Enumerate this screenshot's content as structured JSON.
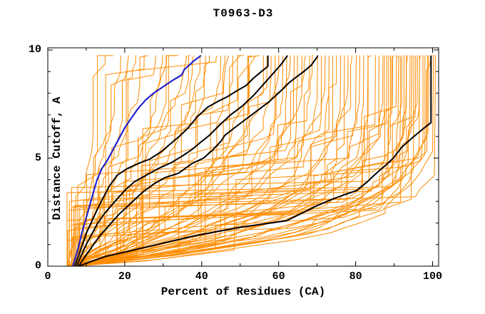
{
  "chart_data": {
    "type": "line",
    "title": "T0963-D3",
    "xlabel": "Percent of Residues (CA)",
    "ylabel": "Distance Cutoff, A",
    "xlim": [
      0,
      101.6
    ],
    "ylim": [
      0,
      10.1
    ],
    "grid": false,
    "legend": "none",
    "x_major_ticks": [
      0,
      20,
      40,
      60,
      80,
      100
    ],
    "x_minor_ticks": [
      10,
      30,
      50,
      70,
      90
    ],
    "y_major_ticks": [
      0,
      5,
      10
    ],
    "y_minor_ticks": [
      1,
      2,
      3,
      4,
      6,
      7,
      8,
      9
    ],
    "curve_top_y": 9.74,
    "colors": {
      "ensemble": "#ff8c00",
      "highlight": "#000000",
      "best": "#2222cc",
      "frame": "#000000",
      "background": "#ffffff"
    },
    "series": [
      {
        "name": "highlight-model-1",
        "color_key": "highlight",
        "width": 2,
        "points": [
          [
            7,
            0
          ],
          [
            8,
            0.5
          ],
          [
            9,
            1.0
          ],
          [
            10.2,
            1.6
          ],
          [
            11.5,
            2.1
          ],
          [
            12.8,
            2.6
          ],
          [
            14.2,
            3.1
          ],
          [
            16,
            3.7
          ],
          [
            18,
            4.2
          ],
          [
            20.5,
            4.5
          ],
          [
            23.5,
            4.75
          ],
          [
            26.5,
            4.95
          ],
          [
            29.5,
            5.3
          ],
          [
            31.5,
            5.6
          ],
          [
            34.4,
            6.04
          ],
          [
            36.5,
            6.4
          ],
          [
            38.8,
            6.9
          ],
          [
            41.6,
            7.36
          ],
          [
            44,
            7.6
          ],
          [
            46.8,
            7.85
          ],
          [
            49,
            8.1
          ],
          [
            51.5,
            8.35
          ],
          [
            53.5,
            8.7
          ],
          [
            55.5,
            9.0
          ],
          [
            57.2,
            9.24
          ],
          [
            57.2,
            9.74
          ]
        ]
      },
      {
        "name": "highlight-model-2",
        "color_key": "highlight",
        "width": 2,
        "points": [
          [
            7.5,
            0
          ],
          [
            8.7,
            0.5
          ],
          [
            10,
            1.0
          ],
          [
            11.5,
            1.5
          ],
          [
            13,
            2.0
          ],
          [
            15,
            2.5
          ],
          [
            17.5,
            3.0
          ],
          [
            20,
            3.5
          ],
          [
            22.5,
            3.9
          ],
          [
            25.5,
            4.2
          ],
          [
            28.5,
            4.5
          ],
          [
            32.1,
            4.79
          ],
          [
            35,
            5.1
          ],
          [
            37.5,
            5.4
          ],
          [
            39.5,
            5.7
          ],
          [
            41.9,
            6.04
          ],
          [
            44.5,
            6.5
          ],
          [
            47.5,
            7.0
          ],
          [
            50.5,
            7.4
          ],
          [
            53.5,
            7.9
          ],
          [
            56.5,
            8.5
          ],
          [
            58.5,
            8.9
          ],
          [
            60.5,
            9.3
          ],
          [
            62.3,
            9.74
          ]
        ]
      },
      {
        "name": "highlight-model-3",
        "color_key": "highlight",
        "width": 2,
        "points": [
          [
            8,
            0
          ],
          [
            9.5,
            0.4
          ],
          [
            11.5,
            0.9
          ],
          [
            13.5,
            1.4
          ],
          [
            16,
            1.9
          ],
          [
            18.5,
            2.4
          ],
          [
            21.5,
            2.9
          ],
          [
            24.5,
            3.4
          ],
          [
            27.5,
            3.8
          ],
          [
            30.5,
            4.1
          ],
          [
            34,
            4.3
          ],
          [
            37.5,
            4.75
          ],
          [
            40.5,
            5.0
          ],
          [
            43,
            5.4
          ],
          [
            45.1,
            5.8
          ],
          [
            46,
            6.05
          ],
          [
            48.5,
            6.4
          ],
          [
            51.5,
            6.8
          ],
          [
            54.5,
            7.2
          ],
          [
            57.5,
            7.6
          ],
          [
            60.5,
            8.1
          ],
          [
            62.8,
            8.5
          ],
          [
            64.6,
            8.75
          ],
          [
            66.5,
            9.0
          ],
          [
            68.5,
            9.3
          ],
          [
            70,
            9.67
          ],
          [
            70.2,
            9.74
          ]
        ]
      },
      {
        "name": "highlight-model-4",
        "color_key": "highlight",
        "width": 2,
        "points": [
          [
            8,
            0
          ],
          [
            11,
            0.2
          ],
          [
            15,
            0.45
          ],
          [
            20,
            0.65
          ],
          [
            26,
            0.9
          ],
          [
            32,
            1.15
          ],
          [
            38,
            1.4
          ],
          [
            44,
            1.6
          ],
          [
            50,
            1.8
          ],
          [
            56,
            1.95
          ],
          [
            62,
            2.1
          ],
          [
            66,
            2.45
          ],
          [
            70,
            2.8
          ],
          [
            74,
            3.1
          ],
          [
            77,
            3.3
          ],
          [
            80.3,
            3.5
          ],
          [
            83,
            3.9
          ],
          [
            86,
            4.4
          ],
          [
            88,
            4.7
          ],
          [
            89.8,
            5.0
          ],
          [
            92,
            5.5
          ],
          [
            94.5,
            5.9
          ],
          [
            96.5,
            6.2
          ],
          [
            98.2,
            6.45
          ],
          [
            99.6,
            6.64
          ],
          [
            99.6,
            9.74
          ]
        ]
      },
      {
        "name": "best-model",
        "color_key": "best",
        "width": 2.2,
        "points": [
          [
            6.5,
            0
          ],
          [
            7.2,
            0.4
          ],
          [
            8,
            0.9
          ],
          [
            8.8,
            1.5
          ],
          [
            9.6,
            2.0
          ],
          [
            10.4,
            2.5
          ],
          [
            11.2,
            3.0
          ],
          [
            12,
            3.5
          ],
          [
            12.8,
            4.0
          ],
          [
            14,
            4.5
          ],
          [
            15.5,
            4.9
          ],
          [
            17,
            5.4
          ],
          [
            18.5,
            5.9
          ],
          [
            20,
            6.4
          ],
          [
            21.5,
            6.8
          ],
          [
            23.5,
            7.3
          ],
          [
            25.5,
            7.7
          ],
          [
            27.5,
            8.0
          ],
          [
            30,
            8.3
          ],
          [
            32.5,
            8.6
          ],
          [
            34.8,
            8.84
          ],
          [
            35.5,
            9.1
          ],
          [
            36.8,
            9.3
          ],
          [
            38,
            9.5
          ],
          [
            39.8,
            9.74
          ]
        ]
      }
    ],
    "ensemble": {
      "name": "server-model-curves",
      "color_key": "ensemble",
      "width": 1,
      "curves": [
        [
          5.0,
          15,
          1.08
        ],
        [
          6.2,
          17,
          1.14
        ],
        [
          7.1,
          19,
          1.25
        ],
        [
          5.6,
          21,
          1.15
        ],
        [
          6.8,
          23,
          1.26
        ],
        [
          7.8,
          25,
          1.44
        ],
        [
          5.2,
          26,
          1.24
        ],
        [
          6.5,
          28,
          1.39
        ],
        [
          7.4,
          30,
          1.63
        ],
        [
          8.3,
          31,
          1.34
        ],
        [
          5.0,
          33,
          1.54
        ],
        [
          6.2,
          34,
          1.81
        ],
        [
          7.1,
          36,
          1.45
        ],
        [
          5.6,
          37,
          1.68
        ],
        [
          6.8,
          38,
          2.01
        ],
        [
          7.8,
          40,
          1.56
        ],
        [
          5.2,
          41,
          1.84
        ],
        [
          6.5,
          42,
          2.23
        ],
        [
          7.4,
          44,
          1.68
        ],
        [
          8.3,
          45,
          2.01
        ],
        [
          5.0,
          46,
          2.48
        ],
        [
          6.2,
          47,
          1.77
        ],
        [
          7.1,
          48,
          2.15
        ],
        [
          5.6,
          50,
          2.75
        ],
        [
          6.8,
          51,
          1.91
        ],
        [
          7.8,
          52,
          2.35
        ],
        [
          5.2,
          53,
          2.97
        ],
        [
          6.5,
          54,
          2.02
        ],
        [
          7.4,
          55,
          2.51
        ],
        [
          8.3,
          56,
          3.2
        ],
        [
          5.0,
          57,
          2.14
        ],
        [
          6.2,
          58,
          2.68
        ],
        [
          7.1,
          59,
          3.44
        ],
        [
          5.6,
          60,
          2.26
        ],
        [
          6.8,
          61,
          2.86
        ],
        [
          7.8,
          62,
          3.69
        ],
        [
          5.2,
          63,
          2.39
        ],
        [
          6.5,
          64,
          3.05
        ],
        [
          7.4,
          65,
          3.96
        ],
        [
          8.3,
          66,
          2.52
        ],
        [
          5.0,
          67,
          3.24
        ],
        [
          6.2,
          68,
          4.24
        ],
        [
          7.1,
          69,
          2.67
        ],
        [
          5.6,
          70,
          3.45
        ],
        [
          6.8,
          71,
          4.53
        ],
        [
          7.8,
          72,
          2.81
        ],
        [
          5.2,
          73,
          3.66
        ],
        [
          6.5,
          74,
          4.83
        ],
        [
          7.4,
          75,
          2.97
        ],
        [
          8.3,
          76,
          3.89
        ],
        [
          5.0,
          77,
          5.15
        ],
        [
          6.2,
          78,
          3.13
        ],
        [
          7.1,
          79,
          4.12
        ],
        [
          5.6,
          80,
          5.48
        ],
        [
          6.8,
          81,
          3.3
        ],
        [
          7.8,
          82,
          4.36
        ],
        [
          5.2,
          83,
          5.82
        ],
        [
          6.5,
          84,
          3.47
        ],
        [
          7.4,
          85,
          4.61
        ],
        [
          8.3,
          86,
          6.18
        ],
        [
          5.0,
          87,
          3.65
        ],
        [
          6.2,
          88,
          4.87
        ],
        [
          7.1,
          89,
          6.54
        ],
        [
          5.6,
          90,
          3.84
        ],
        [
          6.8,
          91,
          5.14
        ],
        [
          7.8,
          92,
          6.92
        ],
        [
          5.2,
          93,
          4.03
        ],
        [
          6.5,
          94,
          5.42
        ],
        [
          7.4,
          95,
          7.32
        ],
        [
          8.3,
          96,
          4.23
        ],
        [
          5.0,
          97,
          5.7
        ],
        [
          6.2,
          98,
          7.72
        ],
        [
          7.1,
          99,
          4.43
        ],
        [
          5.6,
          100,
          6.0
        ],
        [
          6.8,
          100.5,
          8.07
        ],
        [
          7.8,
          99.5,
          4.47
        ],
        [
          5.2,
          98.5,
          5.82
        ],
        [
          6.5,
          97.5,
          7.65
        ],
        [
          7.4,
          96.5,
          4.26
        ],
        [
          8.3,
          95.5,
          5.6
        ],
        [
          5.0,
          94.5,
          7.25
        ],
        [
          6.2,
          93.5,
          4.08
        ],
        [
          7.1,
          92.5,
          5.39
        ],
        [
          5.6,
          91.5,
          6.86
        ],
        [
          6.8,
          90.5,
          3.9
        ],
        [
          7.8,
          89.5,
          5.2
        ],
        [
          5.2,
          88.5,
          6.48
        ],
        [
          6.5,
          87.5,
          3.75
        ]
      ]
    }
  }
}
